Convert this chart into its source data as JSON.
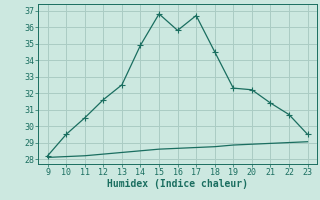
{
  "title": "",
  "xlabel": "Humidex (Indice chaleur)",
  "ylabel": "",
  "bg_color": "#cce8e0",
  "line_color": "#1a6e60",
  "marker_color": "#1a6e60",
  "grid_color": "#aaccc4",
  "x_main": [
    9,
    10,
    11,
    12,
    13,
    14,
    15,
    16,
    17,
    18,
    19,
    20,
    21,
    22,
    23
  ],
  "y_main": [
    28.2,
    29.5,
    30.5,
    31.6,
    32.5,
    34.9,
    36.8,
    35.8,
    36.7,
    34.5,
    32.3,
    32.2,
    31.4,
    30.7,
    29.5
  ],
  "x_flat": [
    9,
    10,
    11,
    12,
    13,
    14,
    15,
    16,
    17,
    18,
    19,
    20,
    21,
    22,
    23
  ],
  "y_flat": [
    28.1,
    28.15,
    28.2,
    28.3,
    28.4,
    28.5,
    28.6,
    28.65,
    28.7,
    28.75,
    28.85,
    28.9,
    28.95,
    29.0,
    29.05
  ],
  "xlim": [
    8.5,
    23.5
  ],
  "ylim": [
    27.7,
    37.4
  ],
  "yticks": [
    28,
    29,
    30,
    31,
    32,
    33,
    34,
    35,
    36,
    37
  ],
  "xticks": [
    9,
    10,
    11,
    12,
    13,
    14,
    15,
    16,
    17,
    18,
    19,
    20,
    21,
    22,
    23
  ],
  "xlabel_fontsize": 7,
  "tick_fontsize": 6,
  "linewidth": 0.9,
  "markersize": 2.8
}
